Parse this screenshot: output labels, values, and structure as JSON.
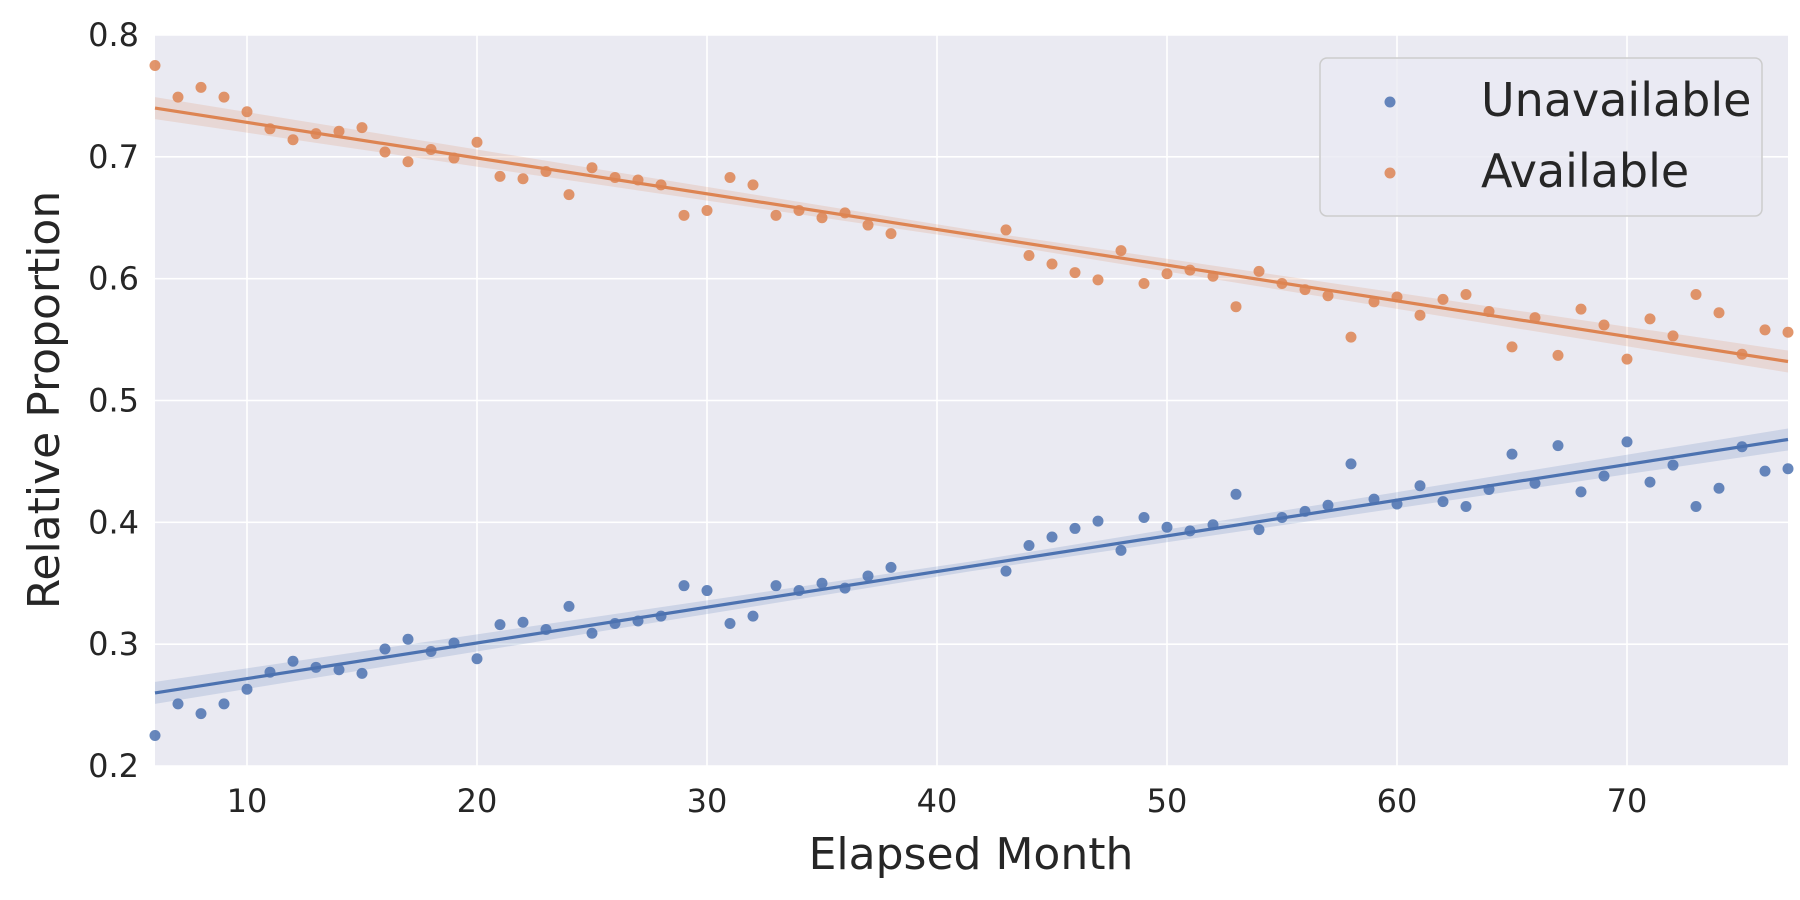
{
  "chart_data": {
    "type": "scatter",
    "xlabel": "Elapsed Month",
    "ylabel": "Relative Proportion",
    "xlim": [
      6,
      77
    ],
    "ylim": [
      0.2,
      0.8
    ],
    "xticks": [
      10,
      20,
      30,
      40,
      50,
      60,
      70
    ],
    "yticks": [
      0.2,
      0.3,
      0.4,
      0.5,
      0.6,
      0.7,
      0.8
    ],
    "grid": true,
    "legend_position": "top-right",
    "background": "#eaeaf2",
    "series": [
      {
        "name": "Unavailable",
        "color": "#4c72b0",
        "x": [
          6,
          7,
          8,
          9,
          10,
          11,
          12,
          13,
          14,
          15,
          16,
          17,
          18,
          19,
          20,
          21,
          22,
          23,
          24,
          25,
          26,
          27,
          28,
          29,
          30,
          31,
          32,
          33,
          34,
          35,
          36,
          37,
          38,
          43,
          44,
          45,
          46,
          47,
          48,
          49,
          50,
          51,
          52,
          53,
          54,
          55,
          56,
          57,
          58,
          59,
          60,
          61,
          62,
          63,
          64,
          65,
          66,
          67,
          68,
          69,
          70,
          71,
          72,
          73,
          74,
          75,
          76,
          77
        ],
        "y": [
          0.225,
          0.251,
          0.243,
          0.251,
          0.263,
          0.277,
          0.286,
          0.281,
          0.279,
          0.276,
          0.296,
          0.304,
          0.294,
          0.301,
          0.288,
          0.316,
          0.318,
          0.312,
          0.331,
          0.309,
          0.317,
          0.319,
          0.323,
          0.348,
          0.344,
          0.317,
          0.323,
          0.348,
          0.344,
          0.35,
          0.346,
          0.356,
          0.363,
          0.36,
          0.381,
          0.388,
          0.395,
          0.401,
          0.377,
          0.404,
          0.396,
          0.393,
          0.398,
          0.423,
          0.394,
          0.404,
          0.409,
          0.414,
          0.448,
          0.419,
          0.415,
          0.43,
          0.417,
          0.413,
          0.427,
          0.456,
          0.432,
          0.463,
          0.425,
          0.438,
          0.466,
          0.433,
          0.447,
          0.413,
          0.428,
          0.462,
          0.442,
          0.444
        ],
        "trend": [
          0.26,
          0.468
        ]
      },
      {
        "name": "Available",
        "color": "#dd8452",
        "x": [
          6,
          7,
          8,
          9,
          10,
          11,
          12,
          13,
          14,
          15,
          16,
          17,
          18,
          19,
          20,
          21,
          22,
          23,
          24,
          25,
          26,
          27,
          28,
          29,
          30,
          31,
          32,
          33,
          34,
          35,
          36,
          37,
          38,
          43,
          44,
          45,
          46,
          47,
          48,
          49,
          50,
          51,
          52,
          53,
          54,
          55,
          56,
          57,
          58,
          59,
          60,
          61,
          62,
          63,
          64,
          65,
          66,
          67,
          68,
          69,
          70,
          71,
          72,
          73,
          74,
          75,
          76,
          77
        ],
        "y": [
          0.775,
          0.749,
          0.757,
          0.749,
          0.737,
          0.723,
          0.714,
          0.719,
          0.721,
          0.724,
          0.704,
          0.696,
          0.706,
          0.699,
          0.712,
          0.684,
          0.682,
          0.688,
          0.669,
          0.691,
          0.683,
          0.681,
          0.677,
          0.652,
          0.656,
          0.683,
          0.677,
          0.652,
          0.656,
          0.65,
          0.654,
          0.644,
          0.637,
          0.64,
          0.619,
          0.612,
          0.605,
          0.599,
          0.623,
          0.596,
          0.604,
          0.607,
          0.602,
          0.577,
          0.606,
          0.596,
          0.591,
          0.586,
          0.552,
          0.581,
          0.585,
          0.57,
          0.583,
          0.587,
          0.573,
          0.544,
          0.568,
          0.537,
          0.575,
          0.562,
          0.534,
          0.567,
          0.553,
          0.587,
          0.572,
          0.538,
          0.558,
          0.556
        ],
        "trend": [
          0.74,
          0.532
        ]
      }
    ]
  }
}
